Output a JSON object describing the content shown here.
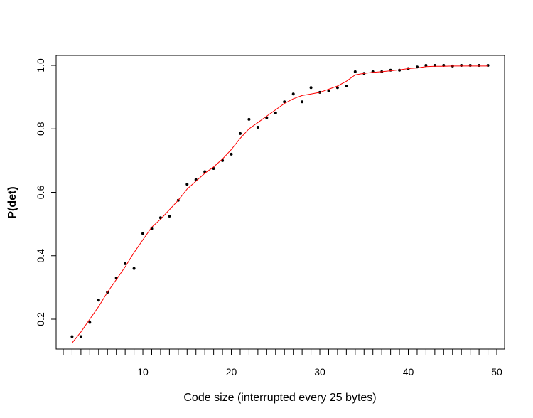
{
  "chart_data": {
    "type": "scatter",
    "title": "",
    "xlabel": "Code size (interrupted every  25  bytes)",
    "ylabel": "P(det)",
    "xlim": [
      2,
      49
    ],
    "ylim": [
      0.13,
      1.0
    ],
    "x_ticks": [
      10,
      20,
      30,
      40,
      50
    ],
    "x_minor_ticks": [
      1,
      2,
      3,
      4,
      5,
      6,
      7,
      8,
      9,
      10,
      11,
      12,
      13,
      14,
      15,
      16,
      17,
      18,
      19,
      20,
      21,
      22,
      23,
      24,
      25,
      26,
      27,
      28,
      29,
      30,
      31,
      32,
      33,
      34,
      35,
      36,
      37,
      38,
      39,
      40,
      41,
      42,
      43,
      44,
      45,
      46,
      47,
      48,
      49,
      50
    ],
    "y_ticks": [
      0.2,
      0.4,
      0.6,
      0.8,
      1.0
    ],
    "y_tick_labels": [
      "0.2",
      "0.4",
      "0.6",
      "0.8",
      "1.0"
    ],
    "grid": false,
    "legend": "none",
    "series": [
      {
        "kind": "points",
        "color": "#000000",
        "x": [
          2,
          3,
          4,
          5,
          6,
          7,
          8,
          9,
          10,
          11,
          12,
          13,
          14,
          15,
          16,
          17,
          18,
          19,
          20,
          21,
          22,
          23,
          24,
          25,
          26,
          27,
          28,
          29,
          30,
          31,
          32,
          33,
          34,
          35,
          36,
          37,
          38,
          39,
          40,
          41,
          42,
          43,
          44,
          45,
          46,
          47,
          48,
          49
        ],
        "y": [
          0.145,
          0.145,
          0.19,
          0.26,
          0.285,
          0.33,
          0.375,
          0.36,
          0.47,
          0.485,
          0.52,
          0.525,
          0.575,
          0.625,
          0.64,
          0.665,
          0.675,
          0.7,
          0.72,
          0.785,
          0.83,
          0.805,
          0.835,
          0.85,
          0.885,
          0.91,
          0.885,
          0.93,
          0.915,
          0.92,
          0.93,
          0.935,
          0.98,
          0.975,
          0.98,
          0.98,
          0.985,
          0.985,
          0.99,
          0.995,
          1.0,
          1.0,
          1.0,
          0.998,
          1.0,
          1.0,
          1.0,
          1.0
        ]
      },
      {
        "kind": "line",
        "color": "#ff0000",
        "x": [
          2,
          3,
          4,
          5,
          6,
          7,
          8,
          9,
          10,
          11,
          12,
          13,
          14,
          15,
          16,
          17,
          18,
          19,
          20,
          21,
          22,
          23,
          24,
          25,
          26,
          27,
          28,
          29,
          30,
          31,
          32,
          33,
          34,
          35,
          36,
          37,
          38,
          39,
          40,
          41,
          42,
          43,
          44,
          45,
          46,
          47,
          48,
          49
        ],
        "y": [
          0.125,
          0.16,
          0.2,
          0.24,
          0.285,
          0.325,
          0.365,
          0.41,
          0.45,
          0.49,
          0.515,
          0.545,
          0.575,
          0.61,
          0.635,
          0.66,
          0.68,
          0.705,
          0.735,
          0.77,
          0.8,
          0.82,
          0.84,
          0.86,
          0.88,
          0.895,
          0.905,
          0.91,
          0.915,
          0.925,
          0.935,
          0.95,
          0.97,
          0.975,
          0.978,
          0.98,
          0.983,
          0.986,
          0.99,
          0.992,
          0.996,
          0.997,
          0.997,
          0.998,
          0.998,
          0.998,
          0.998,
          0.998
        ]
      }
    ]
  }
}
